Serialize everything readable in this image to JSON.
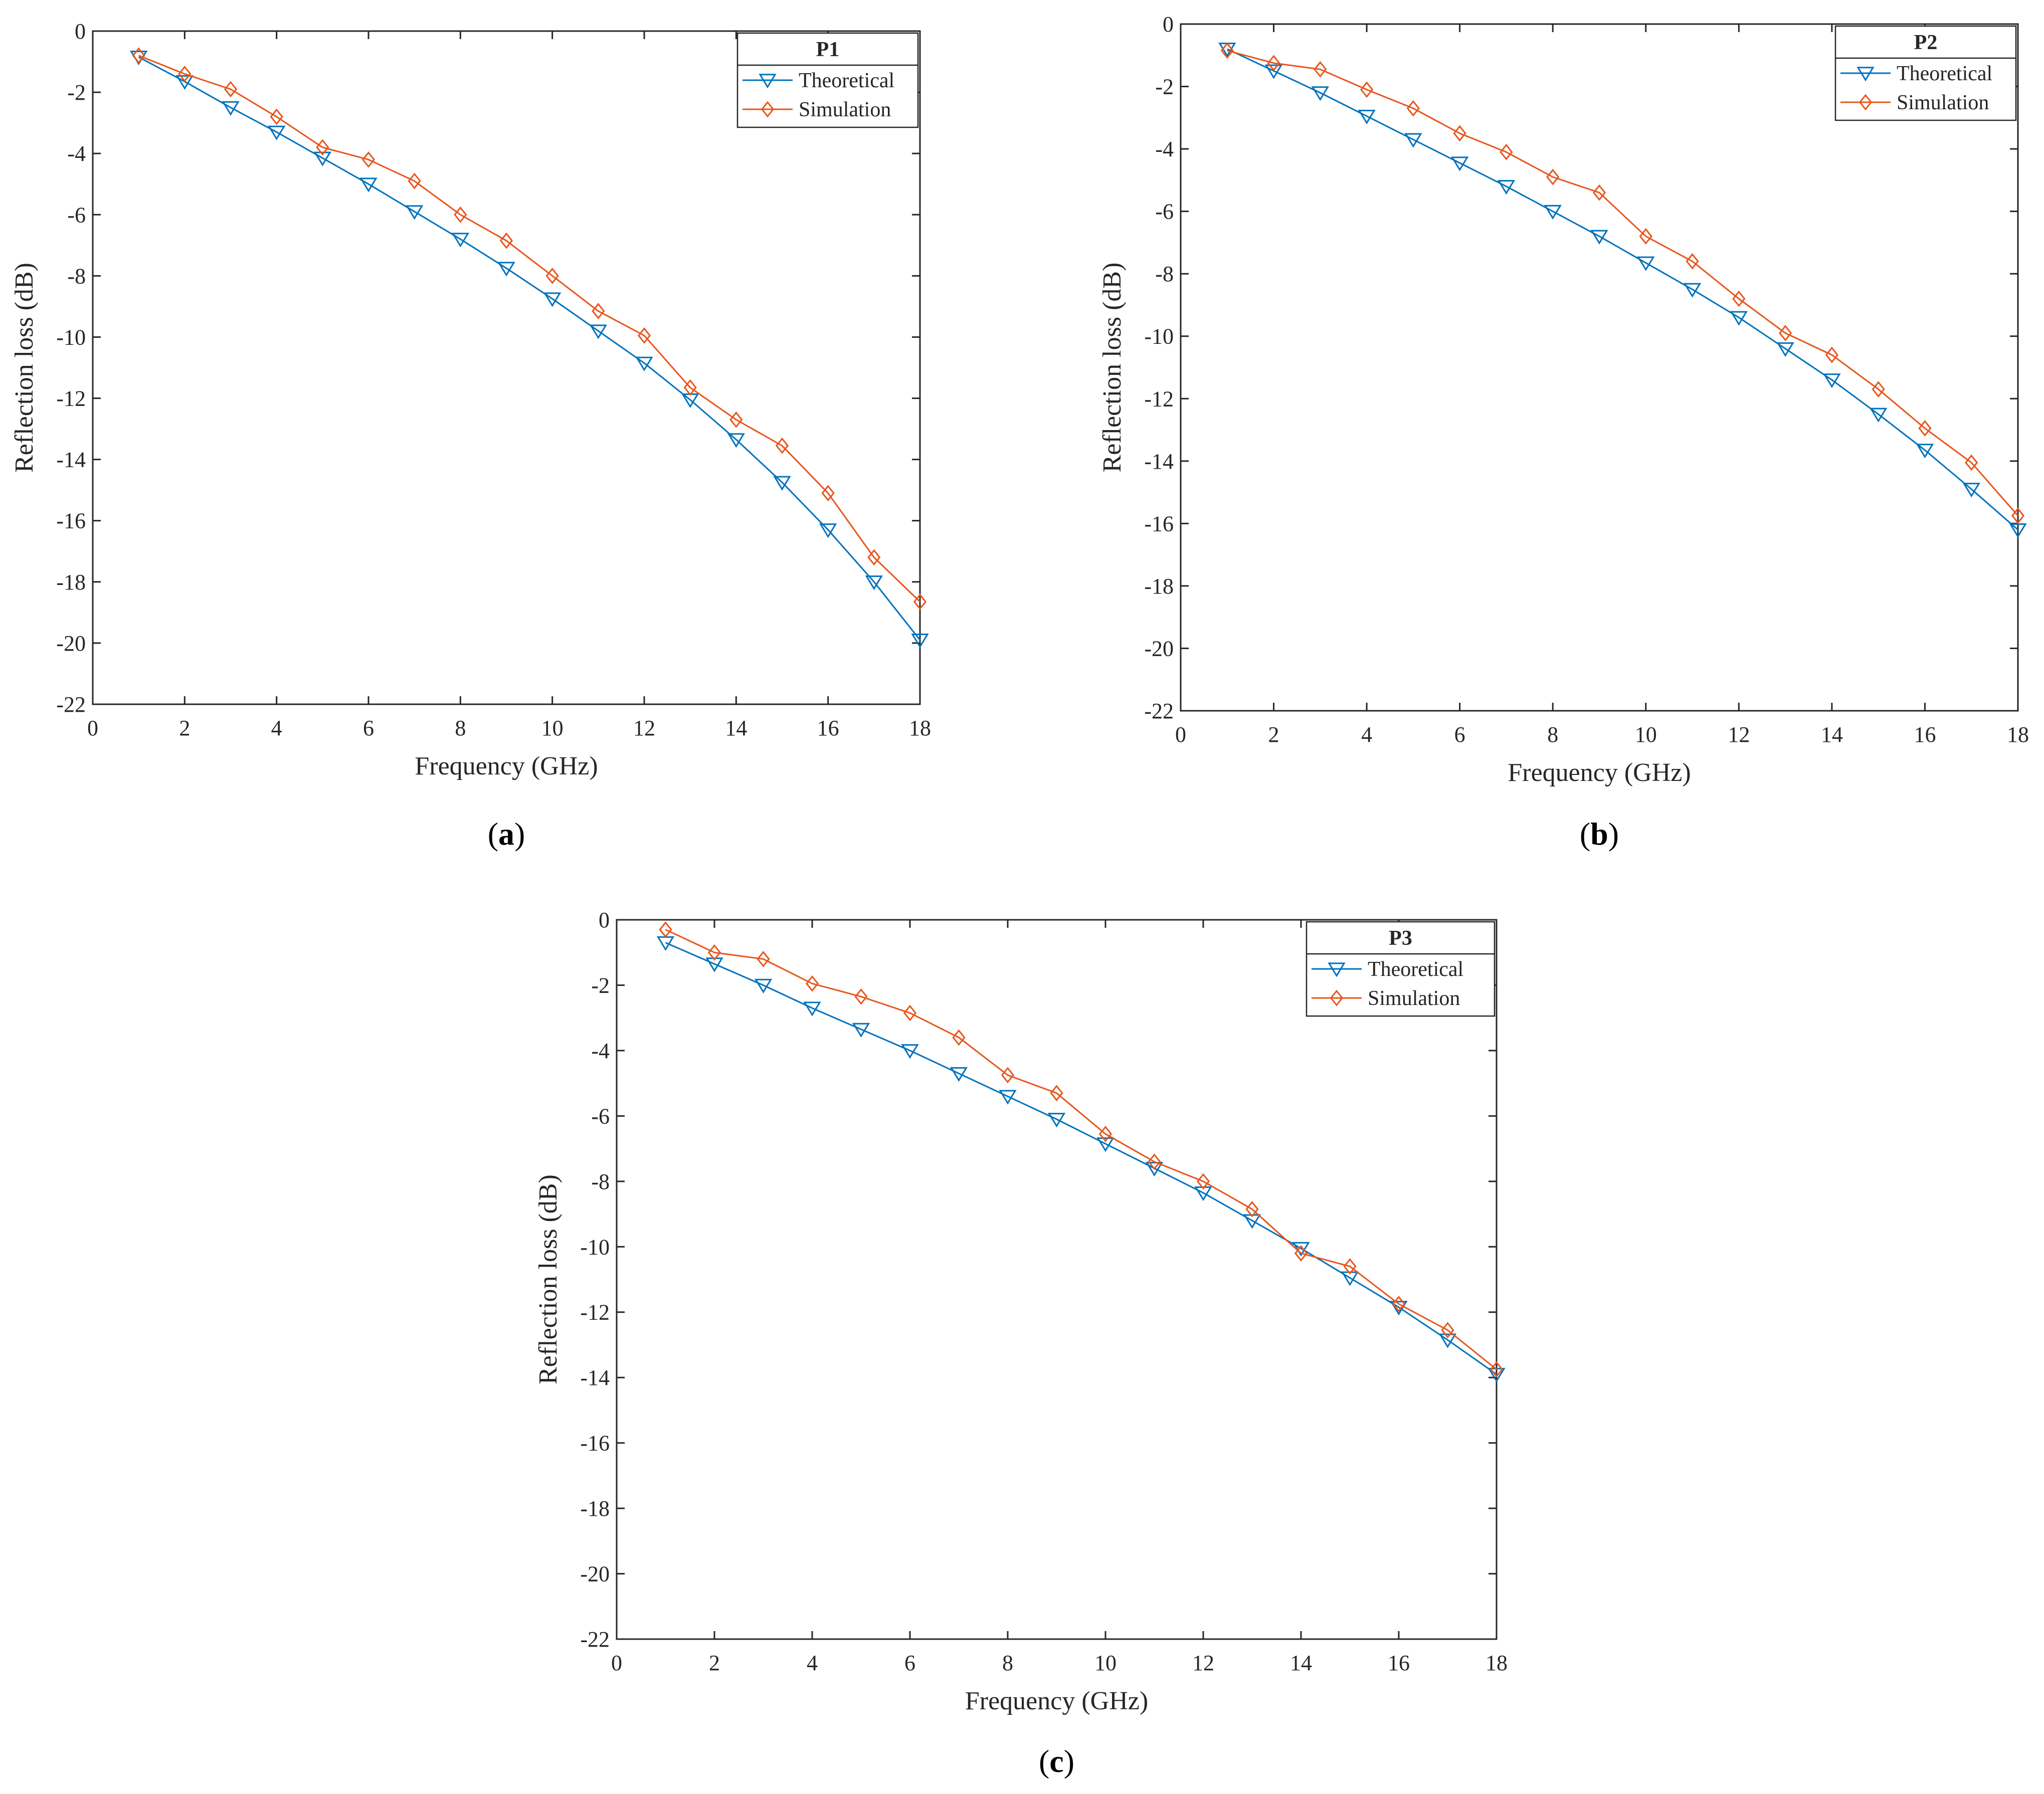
{
  "colors": {
    "theoretical": "#0072BD",
    "simulation": "#E8561C",
    "axis": "#262626"
  },
  "chart_data": [
    {
      "type": "line",
      "panel": "a",
      "caption_open": "(",
      "caption_letter": "a",
      "caption_close": ")",
      "legend_title": "P1",
      "xlabel": "Frequency (GHz)",
      "ylabel": "Reflection loss (dB)",
      "xlim": [
        0,
        18
      ],
      "ylim": [
        -22,
        0
      ],
      "xticks": [
        "0",
        "2",
        "4",
        "6",
        "8",
        "10",
        "12",
        "14",
        "16",
        "18"
      ],
      "yticks": [
        "0",
        "-2",
        "-4",
        "-6",
        "-8",
        "-10",
        "-12",
        "-14",
        "-16",
        "-18",
        "-20",
        "-22"
      ],
      "grid": false,
      "legend_position": "top-right",
      "x": [
        1,
        2,
        3,
        4,
        5,
        6,
        7,
        8,
        9,
        10,
        11,
        12,
        13,
        14,
        15,
        16,
        17,
        18
      ],
      "series": [
        {
          "name": "Theoretical",
          "marker": "triangle-down",
          "values": [
            -0.85,
            -1.65,
            -2.5,
            -3.3,
            -4.15,
            -5.0,
            -5.9,
            -6.8,
            -7.75,
            -8.75,
            -9.8,
            -10.85,
            -12.05,
            -13.35,
            -14.75,
            -16.3,
            -18.0,
            -19.9
          ]
        },
        {
          "name": "Simulation",
          "marker": "diamond",
          "values": [
            -0.8,
            -1.4,
            -1.9,
            -2.8,
            -3.8,
            -4.2,
            -4.9,
            -6.0,
            -6.85,
            -8.0,
            -9.15,
            -9.95,
            -11.65,
            -12.7,
            -13.55,
            -15.1,
            -17.2,
            -18.65
          ]
        }
      ]
    },
    {
      "type": "line",
      "panel": "b",
      "caption_open": "(",
      "caption_letter": "b",
      "caption_close": ")",
      "legend_title": "P2",
      "xlabel": "Frequency (GHz)",
      "ylabel": "Reflection loss (dB)",
      "xlim": [
        0,
        18
      ],
      "ylim": [
        -22,
        0
      ],
      "xticks": [
        "0",
        "2",
        "4",
        "6",
        "8",
        "10",
        "12",
        "14",
        "16",
        "18"
      ],
      "yticks": [
        "0",
        "-2",
        "-4",
        "-6",
        "-8",
        "-10",
        "-12",
        "-14",
        "-16",
        "-18",
        "-20",
        "-22"
      ],
      "grid": false,
      "legend_position": "top-right",
      "x": [
        1,
        2,
        3,
        4,
        5,
        6,
        7,
        8,
        9,
        10,
        11,
        12,
        13,
        14,
        15,
        16,
        17,
        18
      ],
      "series": [
        {
          "name": "Theoretical",
          "marker": "triangle-down",
          "values": [
            -0.8,
            -1.5,
            -2.2,
            -2.95,
            -3.7,
            -4.45,
            -5.2,
            -6.0,
            -6.8,
            -7.65,
            -8.5,
            -9.4,
            -10.4,
            -11.4,
            -12.5,
            -13.65,
            -14.9,
            -16.2
          ]
        },
        {
          "name": "Simulation",
          "marker": "diamond",
          "values": [
            -0.85,
            -1.25,
            -1.45,
            -2.1,
            -2.7,
            -3.5,
            -4.1,
            -4.9,
            -5.4,
            -6.8,
            -7.6,
            -8.8,
            -9.9,
            -10.6,
            -11.7,
            -12.95,
            -14.05,
            -15.75
          ]
        }
      ]
    },
    {
      "type": "line",
      "panel": "c",
      "caption_open": "(",
      "caption_letter": "c",
      "caption_close": ")",
      "legend_title": "P3",
      "xlabel": "Frequency (GHz)",
      "ylabel": "Reflection loss (dB)",
      "xlim": [
        0,
        18
      ],
      "ylim": [
        -22,
        0
      ],
      "xticks": [
        "0",
        "2",
        "4",
        "6",
        "8",
        "10",
        "12",
        "14",
        "16",
        "18"
      ],
      "yticks": [
        "0",
        "-2",
        "-4",
        "-6",
        "-8",
        "-10",
        "-12",
        "-14",
        "-16",
        "-18",
        "-20",
        "-22"
      ],
      "grid": false,
      "legend_position": "top-right",
      "x": [
        1,
        2,
        3,
        4,
        5,
        6,
        7,
        8,
        9,
        10,
        11,
        12,
        13,
        14,
        15,
        16,
        17,
        18
      ],
      "series": [
        {
          "name": "Theoretical",
          "marker": "triangle-down",
          "values": [
            -0.7,
            -1.35,
            -2.0,
            -2.7,
            -3.35,
            -4.0,
            -4.7,
            -5.4,
            -6.1,
            -6.85,
            -7.6,
            -8.35,
            -9.2,
            -10.05,
            -10.95,
            -11.85,
            -12.85,
            -13.9
          ]
        },
        {
          "name": "Simulation",
          "marker": "diamond",
          "values": [
            -0.3,
            -1.0,
            -1.2,
            -1.95,
            -2.35,
            -2.85,
            -3.6,
            -4.75,
            -5.3,
            -6.55,
            -7.4,
            -8.0,
            -8.85,
            -10.2,
            -10.6,
            -11.75,
            -12.55,
            -13.75
          ]
        }
      ]
    }
  ]
}
